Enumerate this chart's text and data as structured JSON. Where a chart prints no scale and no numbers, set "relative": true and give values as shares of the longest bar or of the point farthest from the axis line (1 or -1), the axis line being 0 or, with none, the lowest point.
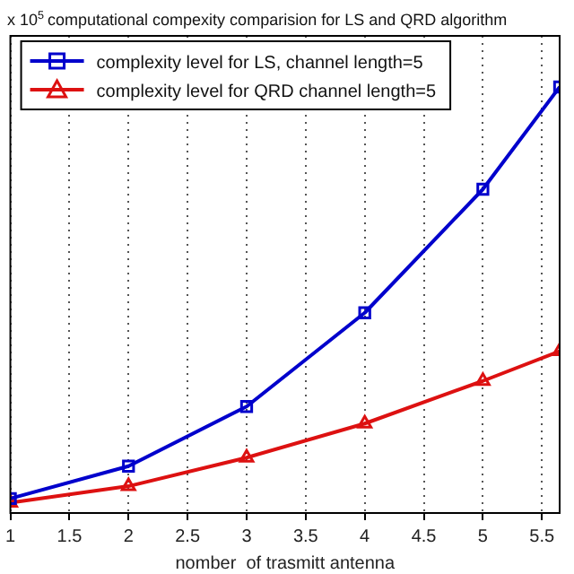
{
  "chart_data": {
    "type": "line",
    "title": "computational compexity comparision for LS and QRD algorithm",
    "annotations": [
      "x 10$^{5}$"
    ],
    "xlabel": "nomber  of trasmitt antenna",
    "relative": true,
    "x": [
      1,
      2,
      3,
      4,
      5,
      5.65
    ],
    "xlim": [
      1,
      5.65
    ],
    "xticks": [
      1,
      1.5,
      2,
      2.5,
      3,
      3.5,
      4,
      4.5,
      5,
      5.5
    ],
    "series": [
      {
        "name": "complexity level for LS, channel length=5",
        "color": "#0000cc",
        "marker": "square",
        "values": [
          0.034,
          0.11,
          0.25,
          0.47,
          0.76,
          1
        ]
      },
      {
        "name": "complexity level for QRD channel length=5",
        "color": "#dd1111",
        "marker": "triangle",
        "values": [
          0.024,
          0.063,
          0.13,
          0.21,
          0.31,
          0.38
        ]
      }
    ],
    "grid": "x",
    "line_style": "solid",
    "legend": "top left",
    "tick_labels": "x"
  }
}
